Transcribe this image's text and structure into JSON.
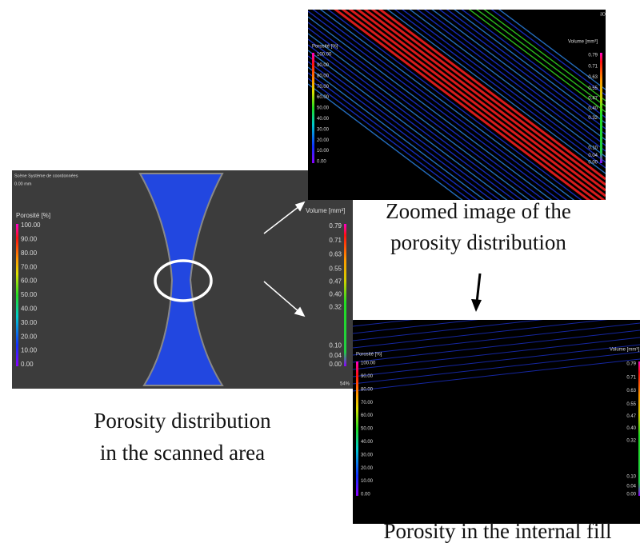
{
  "panels": [
    {
      "header": "Scène Système de coordonnées",
      "subheader": "0.00 mm",
      "footer": "54%",
      "porosity_scale": {
        "title": "Porosité [%]",
        "labels": [
          "100.00",
          "90.00",
          "80.00",
          "70.00",
          "60.00",
          "50.00",
          "40.00",
          "30.00",
          "20.00",
          "10.00",
          "0.00"
        ]
      },
      "volume_scale": {
        "title": "Volume [mm³]",
        "labels": [
          "0.79",
          "0.71",
          "0.63",
          "0.55",
          "0.47",
          "0.40",
          "0.32",
          "0.10",
          "0.04",
          "0.00"
        ]
      },
      "caption": [
        "Porosity distribution",
        "in the scanned area"
      ]
    },
    {
      "header": "3D",
      "porosity_scale": {
        "title": "Porosité [%]",
        "labels": [
          "100.00",
          "90.00",
          "80.00",
          "70.00",
          "60.00",
          "50.00",
          "40.00",
          "30.00",
          "20.00",
          "10.00",
          "0.00"
        ]
      },
      "volume_scale": {
        "title": "Volume [mm³]",
        "labels": [
          "0.79",
          "0.71",
          "0.63",
          "0.55",
          "0.47",
          "0.40",
          "0.32",
          "0.10",
          "0.04",
          "0.00"
        ]
      },
      "caption": [
        "Zoomed image of the",
        "porosity distribution"
      ]
    },
    {
      "porosity_scale": {
        "title": "Porosité [%]",
        "labels": [
          "100.00",
          "90.00",
          "80.00",
          "70.00",
          "60.00",
          "50.00",
          "40.00",
          "30.00",
          "20.00",
          "10.00",
          "0.00"
        ]
      },
      "volume_scale": {
        "title": "Volume [mm³]",
        "labels": [
          "0.79",
          "0.71",
          "0.63",
          "0.55",
          "0.47",
          "0.40",
          "0.32",
          "0.10",
          "0.04",
          "0.00"
        ]
      },
      "caption": [
        "Porosity in the internal fill"
      ]
    }
  ]
}
